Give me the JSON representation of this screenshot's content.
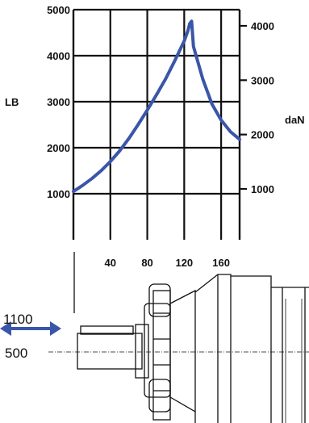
{
  "chart_data": {
    "type": "line",
    "xlabel": "",
    "left_axis": {
      "label": "LB",
      "ylim": [
        0,
        5000
      ],
      "ticks": [
        1000,
        2000,
        3000,
        4000,
        5000
      ]
    },
    "right_axis": {
      "label": "daN",
      "ticks": [
        1000,
        2000,
        3000,
        4000
      ]
    },
    "xlim": [
      0,
      180
    ],
    "x_ticks": [
      40,
      80,
      120,
      160
    ],
    "grid": true,
    "series": [
      {
        "color": "#3a56a8",
        "x": [
          0,
          10,
          20,
          30,
          40,
          50,
          60,
          70,
          80,
          90,
          100,
          110,
          120,
          124,
          126,
          128,
          130,
          140,
          150,
          160,
          170,
          180
        ],
        "y": [
          1050,
          1180,
          1330,
          1500,
          1700,
          1930,
          2200,
          2500,
          2820,
          3150,
          3500,
          3900,
          4320,
          4540,
          4700,
          4750,
          4200,
          3500,
          2950,
          2600,
          2350,
          2180
        ]
      }
    ]
  },
  "drawing": {
    "callout_top": "1100",
    "callout_bottom": "500",
    "arrow_color": "#3a56a8"
  }
}
